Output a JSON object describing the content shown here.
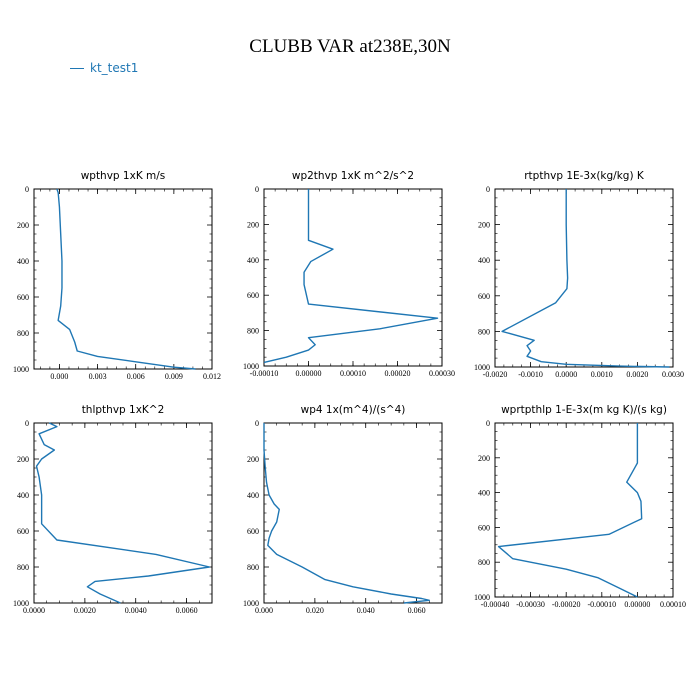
{
  "figure": {
    "title": "CLUBB VAR at238E,30N",
    "legend": [
      {
        "label": "kt_test1",
        "color": "#1f77b4"
      }
    ]
  },
  "chart_data": [
    {
      "type": "line",
      "title": "wpthvp  1xK m/s",
      "xlim": [
        -0.002,
        0.012
      ],
      "xticks": [
        0.0,
        0.003,
        0.006,
        0.009,
        0.012
      ],
      "xticklabels": [
        "0.000",
        "0.003",
        "0.006",
        "0.009",
        "0.012"
      ],
      "ylim": [
        1000,
        0
      ],
      "yticks": [
        0,
        200,
        400,
        600,
        800,
        1000
      ],
      "yticklabels": [
        "0",
        "200",
        "400",
        "600",
        "800",
        "1000"
      ],
      "series": [
        {
          "color": "#1f77b4",
          "x": [
            -0.0002,
            -0.0001,
            0.0,
            0.0001,
            0.0002,
            0.0002,
            0.0001,
            -0.0001,
            0.0008,
            0.0012,
            0.0014,
            0.003,
            0.006,
            0.009,
            0.0107
          ],
          "y": [
            0,
            20,
            100,
            250,
            400,
            550,
            650,
            730,
            780,
            850,
            900,
            930,
            960,
            990,
            1000
          ]
        }
      ]
    },
    {
      "type": "line",
      "title": "wp2thvp  1xK m^2/s^2",
      "xlim": [
        -0.0001,
        0.0003
      ],
      "xticks": [
        -0.0001,
        0.0,
        0.0001,
        0.0002,
        0.0003
      ],
      "xticklabels": [
        "-0.00010",
        "0.00000",
        "0.00010",
        "0.00020",
        "0.00030"
      ],
      "ylim": [
        1000,
        0
      ],
      "yticks": [
        0,
        200,
        400,
        600,
        800,
        1000
      ],
      "yticklabels": [
        "0",
        "200",
        "400",
        "600",
        "800",
        "1000"
      ],
      "series": [
        {
          "color": "#1f77b4",
          "x": [
            0.0,
            0.0,
            0.0,
            0.0,
            5.5e-05,
            5e-06,
            -1e-05,
            -1e-05,
            0.0,
            0.00029,
            0.00016,
            0.0,
            1.5e-05,
            0.0,
            -5e-05,
            -0.0001
          ],
          "y": [
            0,
            100,
            200,
            290,
            340,
            410,
            470,
            540,
            650,
            730,
            790,
            840,
            880,
            910,
            950,
            980
          ]
        }
      ]
    },
    {
      "type": "line",
      "title": "rtpthvp  1E-3x(kg/kg) K",
      "xlim": [
        -0.002,
        0.003
      ],
      "xticks": [
        -0.002,
        -0.001,
        0.0,
        0.001,
        0.002,
        0.003
      ],
      "xticklabels": [
        "-0.0020",
        "-0.0010",
        "0.0000",
        "0.0010",
        "0.0020",
        "0.0030"
      ],
      "ylim": [
        1000,
        0
      ],
      "yticks": [
        0,
        200,
        400,
        600,
        800,
        1000
      ],
      "yticklabels": [
        "0",
        "200",
        "400",
        "600",
        "800",
        "1000"
      ],
      "series": [
        {
          "color": "#1f77b4",
          "x": [
            0.0,
            0.0,
            2e-05,
            4e-05,
            2e-05,
            -0.0003,
            -0.0018,
            -0.0009,
            -0.0011,
            -0.001,
            -0.0011,
            -0.0007,
            0.0,
            0.0015,
            0.0029
          ],
          "y": [
            0,
            200,
            400,
            500,
            560,
            640,
            800,
            850,
            880,
            910,
            940,
            970,
            985,
            995,
            1000
          ]
        }
      ]
    },
    {
      "type": "line",
      "title": "thlpthvp  1xK^2",
      "xlim": [
        0.0,
        0.007
      ],
      "xticks": [
        0.0,
        0.002,
        0.004,
        0.006
      ],
      "xticklabels": [
        "0.0000",
        "0.0020",
        "0.0040",
        "0.0060"
      ],
      "ylim": [
        1000,
        0
      ],
      "yticks": [
        0,
        200,
        400,
        600,
        800,
        1000
      ],
      "yticklabels": [
        "0",
        "200",
        "400",
        "600",
        "800",
        "1000"
      ],
      "series": [
        {
          "color": "#1f77b4",
          "x": [
            0.0006,
            0.0009,
            0.0002,
            0.0004,
            0.0008,
            0.0003,
            0.0001,
            0.0002,
            0.0003,
            0.0003,
            0.0003,
            0.0009,
            0.0048,
            0.0069,
            0.0045,
            0.0024,
            0.0021,
            0.0026,
            0.0034
          ],
          "y": [
            0,
            20,
            60,
            120,
            150,
            200,
            240,
            300,
            400,
            500,
            560,
            650,
            730,
            800,
            850,
            880,
            910,
            950,
            1000
          ]
        }
      ]
    },
    {
      "type": "line",
      "title": "wp4  1x(m^4)/(s^4)",
      "xlim": [
        0.0,
        0.07
      ],
      "xticks": [
        0.0,
        0.02,
        0.04,
        0.06
      ],
      "xticklabels": [
        "0.000",
        "0.020",
        "0.040",
        "0.060"
      ],
      "ylim": [
        1000,
        0
      ],
      "yticks": [
        0,
        200,
        400,
        600,
        800,
        1000
      ],
      "yticklabels": [
        "0",
        "200",
        "400",
        "600",
        "800",
        "1000"
      ],
      "series": [
        {
          "color": "#1f77b4",
          "x": [
            0.0,
            0.0,
            0.0005,
            0.001,
            0.002,
            0.004,
            0.006,
            0.005,
            0.003,
            0.002,
            0.0015,
            0.005,
            0.015,
            0.024,
            0.035,
            0.05,
            0.062,
            0.065,
            0.055
          ],
          "y": [
            0,
            150,
            250,
            330,
            400,
            450,
            480,
            550,
            600,
            640,
            680,
            730,
            800,
            870,
            910,
            950,
            975,
            985,
            1000
          ]
        }
      ]
    },
    {
      "type": "line",
      "title": "wprtpthlp  1-E-3x(m kg K)/(s kg)",
      "xlim": [
        -0.0004,
        0.0001
      ],
      "xticks": [
        -0.0004,
        -0.0003,
        -0.0002,
        -0.0001,
        0.0,
        0.0001
      ],
      "xticklabels": [
        "-0.00040",
        "-0.00030",
        "-0.00020",
        "-0.00010",
        "0.00000",
        "0.00010"
      ],
      "ylim": [
        1000,
        0
      ],
      "yticks": [
        0,
        200,
        400,
        600,
        800,
        1000
      ],
      "yticklabels": [
        "0",
        "200",
        "400",
        "600",
        "800",
        "1000"
      ],
      "series": [
        {
          "color": "#1f77b4",
          "x": [
            0.0,
            0.0,
            0.0,
            -3e-05,
            0.0,
            1e-05,
            1.2e-05,
            -8e-05,
            -0.00039,
            -0.00035,
            -0.0002,
            -0.00011,
            -5e-05,
            0.0
          ],
          "y": [
            0,
            100,
            230,
            340,
            400,
            450,
            550,
            640,
            710,
            780,
            840,
            890,
            950,
            1000
          ]
        }
      ]
    }
  ]
}
